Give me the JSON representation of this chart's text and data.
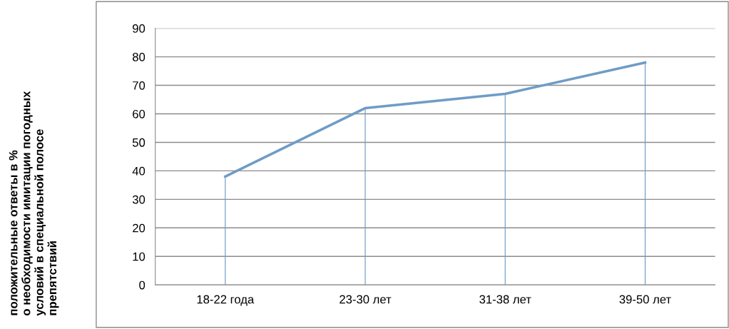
{
  "chart_data": {
    "type": "line",
    "annotations": [
      "положительные ответы в %\nо необходимости имитации погодных\nусловий в специальной полосе\nпрепятствий"
    ],
    "categories": [
      "18-22 года",
      "23-30 лет",
      "31-38 лет",
      "39-50 лет"
    ],
    "series": [
      {
        "color": "#6f9cc6",
        "values": [
          38,
          62,
          67,
          78
        ]
      },
      {
        "type": "bar",
        "color": "#6f9cc6",
        "values": [
          38,
          62,
          67,
          78
        ]
      }
    ],
    "ylim": [
      0,
      90
    ],
    "yticks": [
      0,
      10,
      20,
      30,
      40,
      50,
      60,
      70,
      80,
      90
    ],
    "grid": "y",
    "legend": false,
    "marker": "none",
    "line_style": "solid"
  }
}
